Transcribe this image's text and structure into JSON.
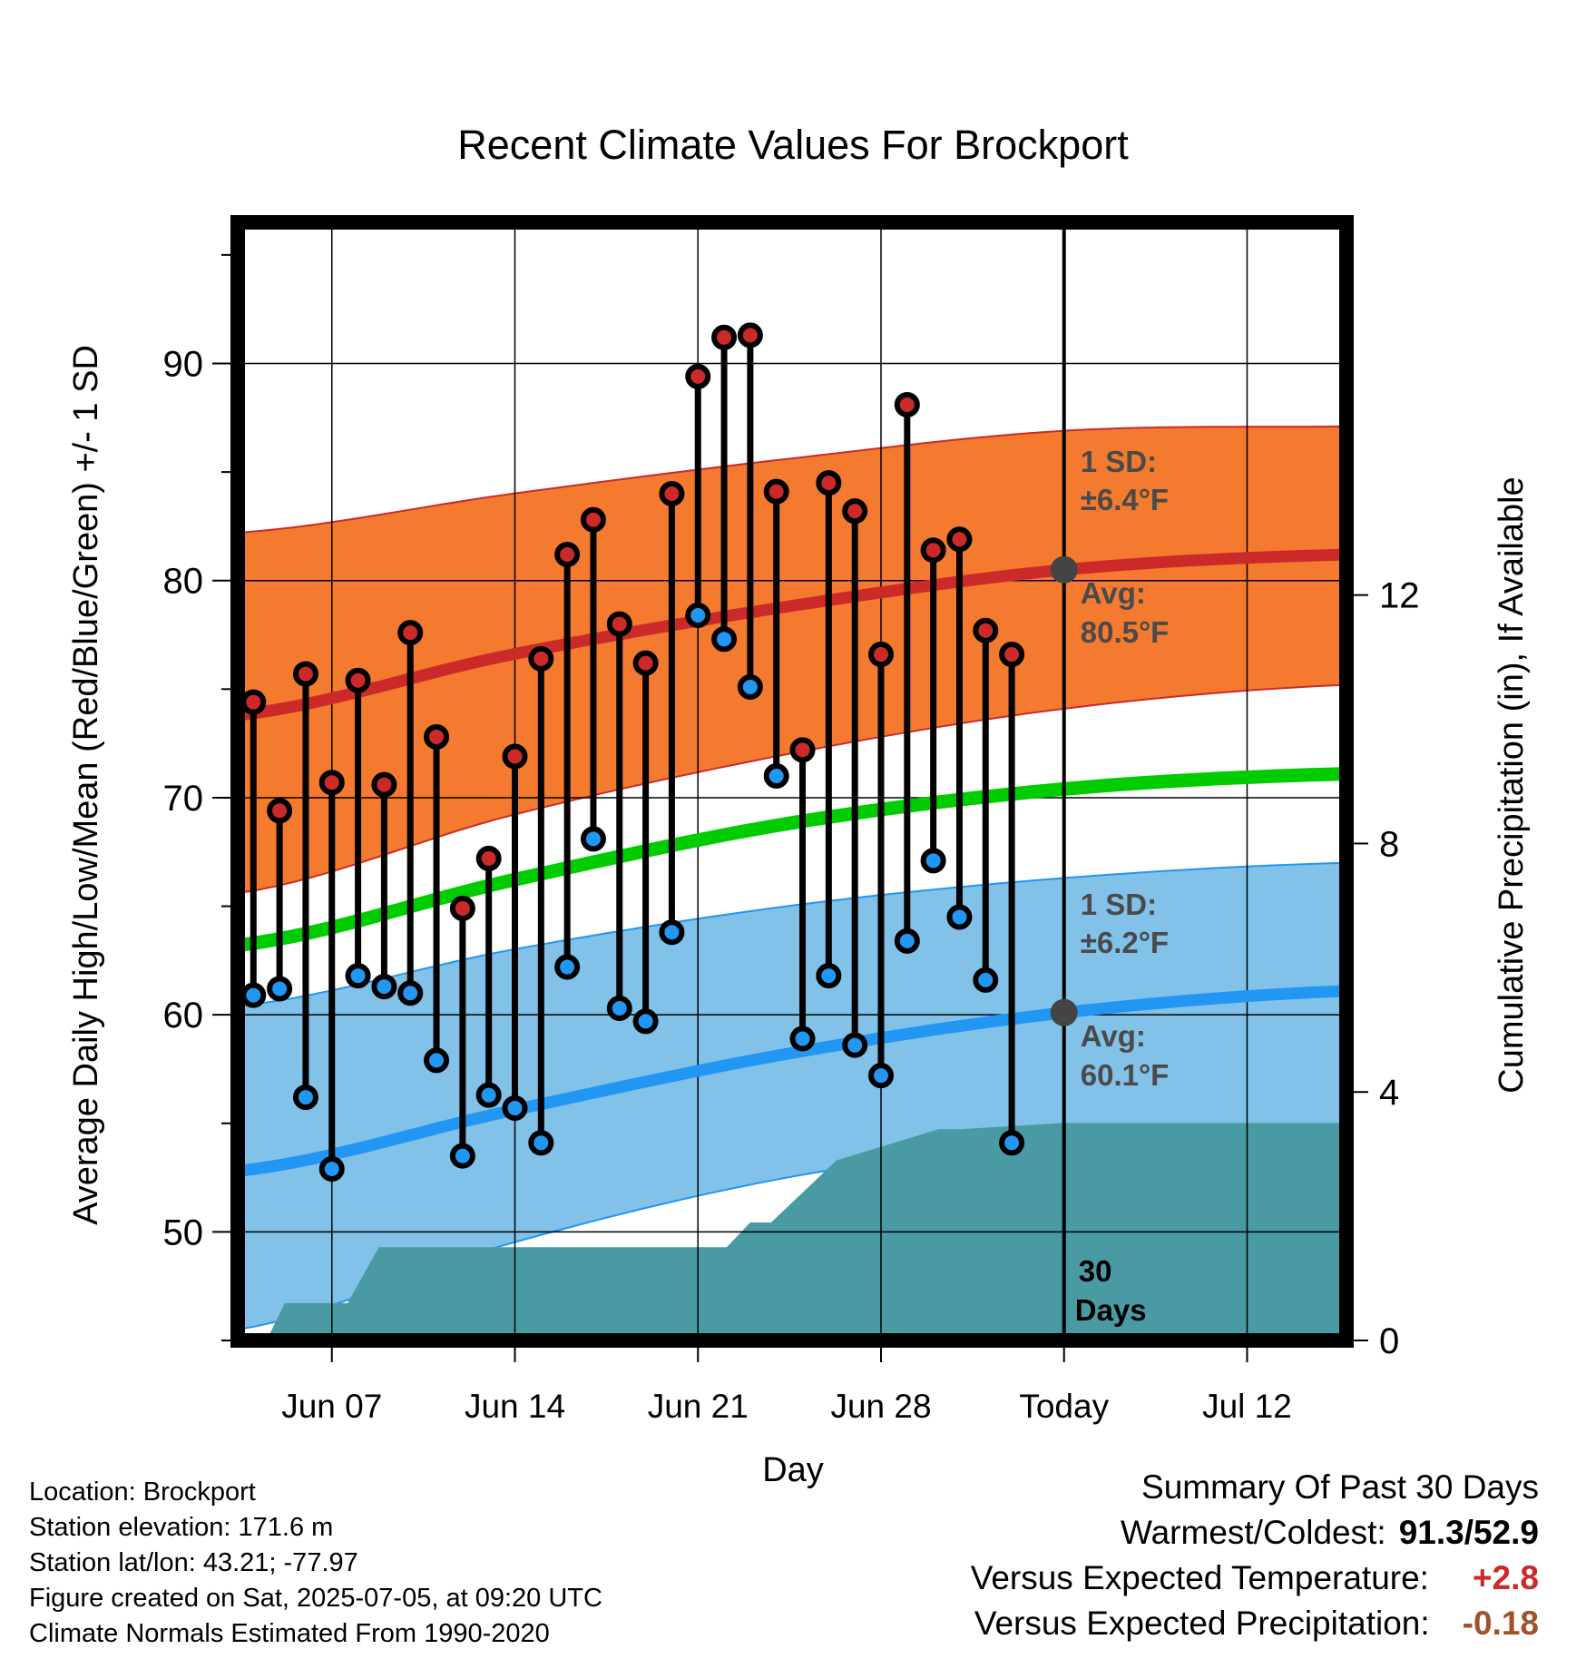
{
  "chart_data": {
    "type": "line",
    "title": "Recent Climate Values For Brockport",
    "xlabel": "Day",
    "ylabel": "Average Daily High/Low/Mean (Red/Blue/Green) +/- 1 SD",
    "y2label": "Cumulative Precipitation (in), If Available",
    "x_start": "Jun 04",
    "xlim_days": [
      -0.6,
      41.8
    ],
    "ylim": [
      45,
      96.5
    ],
    "y2lim": [
      0,
      18
    ],
    "grid": true,
    "xticks": [
      {
        "day": 3,
        "label": "Jun 07"
      },
      {
        "day": 10,
        "label": "Jun 14"
      },
      {
        "day": 17,
        "label": "Jun 21"
      },
      {
        "day": 24,
        "label": "Jun 28"
      },
      {
        "day": 31,
        "label": "Today"
      },
      {
        "day": 38,
        "label": "Jul 12"
      }
    ],
    "yticks": [
      50,
      60,
      70,
      80,
      90
    ],
    "y2ticks": [
      0,
      4,
      8,
      12
    ],
    "today_day": 31,
    "series": [
      {
        "name": "Daily High",
        "color": "#cc2a2a",
        "values": [
          74.4,
          69.4,
          75.7,
          70.7,
          75.4,
          70.6,
          77.6,
          72.8,
          64.9,
          67.2,
          71.9,
          76.4,
          81.2,
          82.8,
          78.0,
          76.2,
          84.0,
          89.4,
          91.2,
          91.3,
          84.1,
          72.2,
          84.5,
          83.2,
          76.6,
          88.1,
          81.4,
          81.9,
          77.7,
          76.6
        ]
      },
      {
        "name": "Daily Low",
        "color": "#2196f3",
        "values": [
          60.9,
          61.2,
          56.2,
          52.9,
          61.8,
          61.3,
          61.0,
          57.9,
          53.5,
          56.3,
          55.7,
          54.1,
          62.2,
          68.1,
          60.3,
          59.7,
          63.8,
          78.4,
          77.3,
          75.1,
          71.0,
          58.9,
          61.8,
          58.6,
          57.2,
          63.4,
          67.1,
          64.5,
          61.6,
          54.1
        ]
      }
    ],
    "normals": {
      "days": [
        -0.6,
        9.9,
        20.4,
        31,
        41.8
      ],
      "high_avg": [
        73.8,
        76.6,
        78.8,
        80.5,
        81.2
      ],
      "high_sd_upper": [
        82.2,
        84.0,
        85.6,
        86.9,
        87.1
      ],
      "high_sd_lower": [
        65.6,
        69.2,
        72.0,
        74.1,
        75.2
      ],
      "mean_avg": [
        63.2,
        66.2,
        68.8,
        70.4,
        71.1
      ],
      "low_avg": [
        52.8,
        55.6,
        58.2,
        60.1,
        61.1
      ],
      "low_sd_upper": [
        60.4,
        63.0,
        65.0,
        66.3,
        67.0
      ],
      "low_sd_lower": [
        45.5,
        49.5,
        52.5,
        54.2,
        54.9
      ]
    },
    "precip_cumulative": {
      "days": [
        0.5,
        1.2,
        2.5,
        3.6,
        4.8,
        9.8,
        11.0,
        12.0,
        17.7,
        18.1,
        19.0,
        19.8,
        22.3,
        26.2,
        27.0,
        31.0,
        41.8
      ],
      "values": [
        0.0,
        0.6,
        0.6,
        0.6,
        1.5,
        1.5,
        1.5,
        1.5,
        1.5,
        1.5,
        1.9,
        1.9,
        2.9,
        3.4,
        3.4,
        3.5,
        3.5
      ]
    },
    "annotations": {
      "high_sd": "1 SD:",
      "high_sd_value": "±6.4°F",
      "high_avg_label": "Avg:",
      "high_avg_value": "80.5°F",
      "low_sd": "1 SD:",
      "low_sd_value": "±6.2°F",
      "low_avg_label": "Avg:",
      "low_avg_value": "60.1°F",
      "days_number": "30",
      "days_word": "Days"
    },
    "colors": {
      "high_band": "#f47a30",
      "high_line": "#cc2a2a",
      "mean_line": "#00cc00",
      "low_band": "#82c1e8",
      "low_line": "#2196f3",
      "precip": "#4a9aa3",
      "avg_marker": "#444444",
      "annotation_text": "#4a4a4a"
    }
  },
  "footer": {
    "location": "Location: Brockport",
    "elevation": "Station elevation: 171.6 m",
    "latlon": "Station lat/lon: 43.21; -77.97",
    "created": "Figure created on Sat, 2025-07-05, at 09:20 UTC",
    "normals": "Climate Normals Estimated From 1990-2020"
  },
  "summary": {
    "title": "Summary Of Past 30 Days",
    "warm_cold_label": "Warmest/Coldest:",
    "warm_cold_value": "91.3/52.9",
    "temp_label": "Versus Expected Temperature:",
    "temp_value": "+2.8",
    "temp_color": "#cc2a2a",
    "precip_label": "Versus Expected Precipitation:",
    "precip_value": "-0.18",
    "precip_color": "#a0522d"
  }
}
